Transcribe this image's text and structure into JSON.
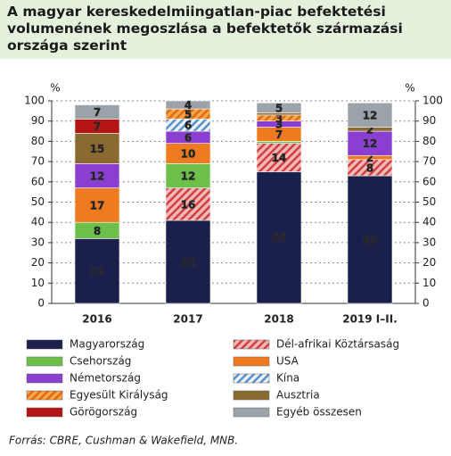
{
  "chart_data": {
    "type": "stacked_bar",
    "title": "A magyar kereskedelmiingatlan-piac befektetési volumenének megoszlása a befektetők származási országa szerint",
    "y_unit": "%",
    "categories": [
      "2016",
      "2017",
      "2018",
      "2019 I–II."
    ],
    "ylim": [
      0,
      100
    ],
    "yticks": [
      0,
      10,
      20,
      30,
      40,
      50,
      60,
      70,
      80,
      90,
      100
    ],
    "grid": true,
    "series": [
      {
        "name": "Magyarország",
        "color": "#1b1f4b",
        "values": [
          32,
          41,
          65,
          63
        ]
      },
      {
        "name": "Dél-afrikai Köztársaság",
        "color": "#f2b8b8",
        "hatch": "#d04040",
        "values": [
          null,
          16,
          14,
          8
        ]
      },
      {
        "name": "Csehország",
        "color": "#6cc04a",
        "values": [
          8,
          12,
          1,
          null
        ]
      },
      {
        "name": "USA",
        "color": "#f07a20",
        "values": [
          17,
          10,
          7,
          2
        ]
      },
      {
        "name": "Németország",
        "color": "#8a3fd0",
        "values": [
          12,
          6,
          3,
          12
        ]
      },
      {
        "name": "Kína",
        "color": "#eaf3fb",
        "hatch": "#5a8fc8",
        "values": [
          null,
          6,
          null,
          null
        ]
      },
      {
        "name": "Egyesült Királyság",
        "color": "#f7a64a",
        "hatch": "#e06a10",
        "values": [
          null,
          5,
          3,
          null
        ]
      },
      {
        "name": "Ausztria",
        "color": "#8a6a30",
        "values": [
          15,
          null,
          1,
          2
        ]
      },
      {
        "name": "Görögország",
        "color": "#b41414",
        "values": [
          7,
          null,
          null,
          null
        ]
      },
      {
        "name": "Egyéb összesen",
        "color": "#9ca2aa",
        "values": [
          7,
          4,
          5,
          12
        ]
      }
    ],
    "source": "Forrás: CBRE, Cushman & Wakefield, MNB."
  }
}
